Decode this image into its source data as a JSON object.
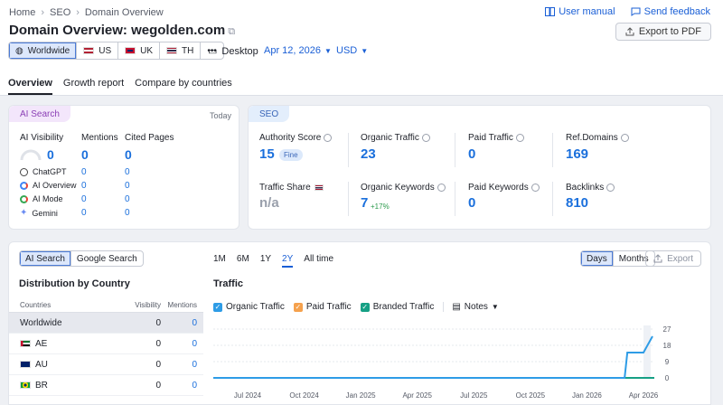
{
  "breadcrumbs": [
    "Home",
    "SEO",
    "Domain Overview"
  ],
  "title": {
    "prefix": "Domain Overview:",
    "domain": "wegolden.com"
  },
  "links": {
    "user_manual": "User manual",
    "send_feedback": "Send feedback"
  },
  "export_pdf": "Export to PDF",
  "geo": [
    {
      "label": "Worldwide",
      "active": true
    },
    {
      "label": "US"
    },
    {
      "label": "UK"
    },
    {
      "label": "TH"
    },
    {
      "label": "•••"
    }
  ],
  "device": "Desktop",
  "date": "Apr 12, 2026",
  "currency": "USD",
  "tabs": [
    "Overview",
    "Growth report",
    "Compare by countries"
  ],
  "ai_card": {
    "pill": "AI Search",
    "today": "Today",
    "visibility_label": "AI Visibility",
    "visibility": "0",
    "mentions_label": "Mentions",
    "mentions": "0",
    "cited_label": "Cited Pages",
    "cited": "0",
    "sources": [
      {
        "name": "ChatGPT",
        "mentions": "0",
        "cited": "0",
        "color": "#444"
      },
      {
        "name": "AI Overview",
        "mentions": "0",
        "cited": "0",
        "color": "#4285f4"
      },
      {
        "name": "AI Mode",
        "mentions": "0",
        "cited": "0",
        "color": "#34a853"
      },
      {
        "name": "Gemini",
        "mentions": "0",
        "cited": "0",
        "color": "#6b8cf2"
      }
    ]
  },
  "seo_card": {
    "pill": "SEO",
    "authority_label": "Authority Score",
    "authority": "15",
    "authority_badge": "Fine",
    "organic_traffic_label": "Organic Traffic",
    "organic_traffic": "23",
    "paid_traffic_label": "Paid Traffic",
    "paid_traffic": "0",
    "ref_domains_label": "Ref.Domains",
    "ref_domains": "169",
    "traffic_share_label": "Traffic Share",
    "traffic_share": "n/a",
    "organic_keywords_label": "Organic Keywords",
    "organic_keywords": "7",
    "organic_keywords_delta": "+17%",
    "paid_keywords_label": "Paid Keywords",
    "paid_keywords": "0",
    "backlinks_label": "Backlinks",
    "backlinks": "810"
  },
  "bottom": {
    "search_tabs": [
      "AI Search",
      "Google Search"
    ],
    "ranges": [
      "1M",
      "6M",
      "1Y",
      "2Y",
      "All time"
    ],
    "active_range": "2Y",
    "view_tabs": [
      "Days",
      "Months"
    ],
    "export": "Export",
    "dist_title": "Distribution by Country",
    "table_headers": [
      "Countries",
      "Visibility",
      "Mentions"
    ],
    "rows": [
      {
        "country": "Worldwide",
        "visibility": "0",
        "mentions": "0",
        "flag": ""
      },
      {
        "country": "AE",
        "visibility": "0",
        "mentions": "0",
        "flag": "ae"
      },
      {
        "country": "AU",
        "visibility": "0",
        "mentions": "0",
        "flag": "au"
      },
      {
        "country": "BR",
        "visibility": "0",
        "mentions": "0",
        "flag": "br"
      }
    ],
    "traffic_title": "Traffic",
    "legend": [
      {
        "name": "Organic Traffic",
        "color": "#2e9ce6"
      },
      {
        "name": "Paid Traffic",
        "color": "#f5a14d"
      },
      {
        "name": "Branded Traffic",
        "color": "#16a085"
      }
    ],
    "notes": "Notes"
  },
  "chart_data": {
    "type": "line",
    "title": "Traffic",
    "x_ticks": [
      "Jul 2024",
      "Oct 2024",
      "Jan 2025",
      "Apr 2025",
      "Jul 2025",
      "Oct 2025",
      "Jan 2026",
      "Apr 2026"
    ],
    "y_ticks": [
      0,
      9,
      18,
      27
    ],
    "ylim": [
      0,
      27
    ],
    "series": [
      {
        "name": "Organic Traffic",
        "color": "#2e9ce6",
        "x": [
          "Jul 2024",
          "Oct 2024",
          "Jan 2025",
          "Apr 2025",
          "Jul 2025",
          "Oct 2025",
          "Jan 2026",
          "Feb 2026",
          "Mar 2026",
          "Mar 2026",
          "Apr 2026",
          "Apr 2026"
        ],
        "values": [
          0,
          0,
          0,
          0,
          0,
          0,
          0,
          0,
          0,
          14,
          14,
          23
        ]
      },
      {
        "name": "Branded Traffic",
        "color": "#16a085",
        "x": [
          "Jul 2024",
          "Apr 2026"
        ],
        "values": [
          0,
          0
        ]
      }
    ]
  }
}
